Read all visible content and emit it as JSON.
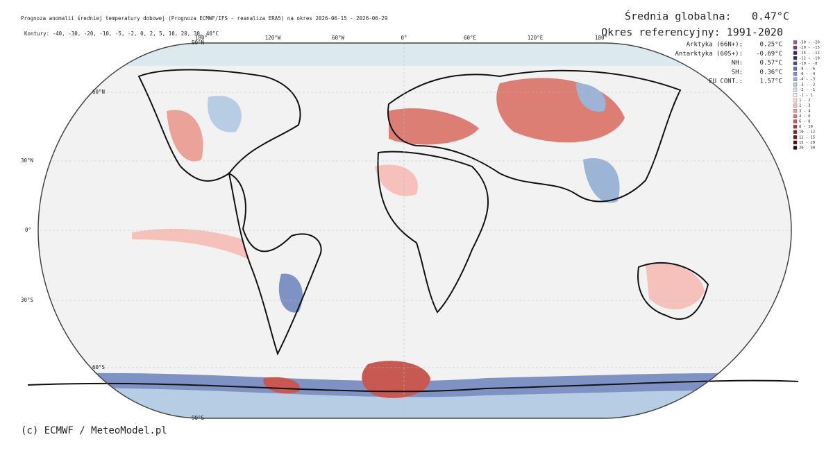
{
  "header": {
    "title": "Prognoza anomalii średniej temperatury dobowej (Prognoza ECMWF/IFS - reanaliza ERA5) na okres 2026-06-15 - 2026-06-29",
    "contours": "Kontury: -40, -30, -20, -10, -5, -2, 0, 2, 5, 10, 20, 30, 40°C"
  },
  "summary": {
    "global_label": "Średnia globalna:",
    "global_value": "0.47°C",
    "reference": "Okres referencyjny: 1991-2020"
  },
  "stats": [
    {
      "label": "Arktyka (66N+):",
      "value": "0.25°C"
    },
    {
      "label": "Antarktyka (60S+):",
      "value": "-0.69°C"
    },
    {
      "label": "NH:",
      "value": "0.57°C"
    },
    {
      "label": "SH:",
      "value": "0.36°C"
    },
    {
      "label": "EU CONT.:",
      "value": "1.57°C"
    }
  ],
  "legend": [
    {
      "label": "-30 - -20",
      "color": "#9c5a8c"
    },
    {
      "label": "-20 - -15",
      "color": "#7a3d72"
    },
    {
      "label": "-15 - -12",
      "color": "#4a1f5a"
    },
    {
      "label": "-12 - -10",
      "color": "#3b2a6e"
    },
    {
      "label": "-10 - -8",
      "color": "#4a4a96"
    },
    {
      "label": "-8 - -6",
      "color": "#6670b0"
    },
    {
      "label": "-6 - -4",
      "color": "#7f92c4"
    },
    {
      "label": "-4 - -3",
      "color": "#9cb4d6"
    },
    {
      "label": "-3 - -2",
      "color": "#b6cde3"
    },
    {
      "label": "-2 - -1",
      "color": "#d2e2ee"
    },
    {
      "label": "-1 - 1",
      "color": "#f2f2f2"
    },
    {
      "label": "1 - 2",
      "color": "#fbdcd8"
    },
    {
      "label": "2 - 3",
      "color": "#f5c1ba"
    },
    {
      "label": "3 - 4",
      "color": "#eba298"
    },
    {
      "label": "4 - 6",
      "color": "#dc7e74"
    },
    {
      "label": "6 - 8",
      "color": "#c75852"
    },
    {
      "label": "8 - 10",
      "color": "#a8383a"
    },
    {
      "label": "10 - 12",
      "color": "#8a2028"
    },
    {
      "label": "12 - 15",
      "color": "#6a1018"
    },
    {
      "label": "15 - 20",
      "color": "#4a0810"
    },
    {
      "label": "20 - 30",
      "color": "#2a0408"
    }
  ],
  "map": {
    "lat_labels": [
      "90°N",
      "60°N",
      "30°N",
      "0°",
      "30°S",
      "60°S",
      "90°S"
    ],
    "lon_labels": [
      "180°",
      "120°W",
      "60°W",
      "0°",
      "60°E",
      "120°E",
      "180°"
    ]
  },
  "footer": "(c) ECMWF / MeteoModel.pl"
}
